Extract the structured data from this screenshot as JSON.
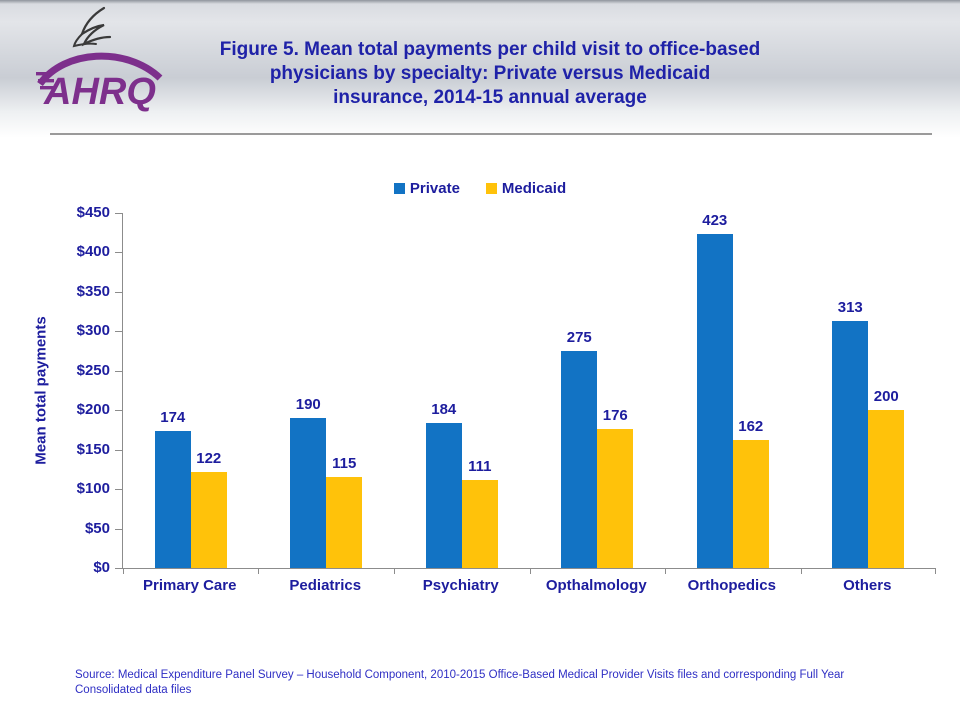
{
  "header": {
    "org_logo_text": "AHRQ",
    "title": "Figure 5. Mean total payments per child visit to office-based\nphysicians by specialty: Private versus Medicaid\ninsurance, 2014-15 annual average"
  },
  "chart_data": {
    "type": "bar",
    "title": "Figure 5. Mean total payments per child visit to office-based physicians by specialty: Private versus Medicaid insurance, 2014-15 annual average",
    "categories": [
      "Primary Care",
      "Pediatrics",
      "Psychiatry",
      "Opthalmology",
      "Orthopedics",
      "Others"
    ],
    "series": [
      {
        "name": "Private",
        "color": "#1273C4",
        "values": [
          174,
          190,
          184,
          275,
          423,
          313
        ]
      },
      {
        "name": "Medicaid",
        "color": "#FFC20A",
        "values": [
          122,
          115,
          111,
          176,
          162,
          200
        ]
      }
    ],
    "xlabel": "",
    "ylabel": "Mean total payments",
    "ylim": [
      0,
      450
    ],
    "ytick_step": 50,
    "ytick_labels": [
      "$0",
      "$50",
      "$100",
      "$150",
      "$200",
      "$250",
      "$300",
      "$350",
      "$400",
      "$450"
    ],
    "grid": false,
    "legend_position": "top-center",
    "value_labels_shown": true
  },
  "colors": {
    "accent_text": "#1d1d9e",
    "title_text": "#1f22a8",
    "axis": "#8c8c8c",
    "logo_purple": "#7d2f8c",
    "source_text": "#2f2fc4"
  },
  "footer": {
    "source": "Source: Medical Expenditure Panel Survey – Household Component, 2010-2015 Office-Based Medical Provider Visits files and corresponding Full Year\nConsolidated data files"
  }
}
